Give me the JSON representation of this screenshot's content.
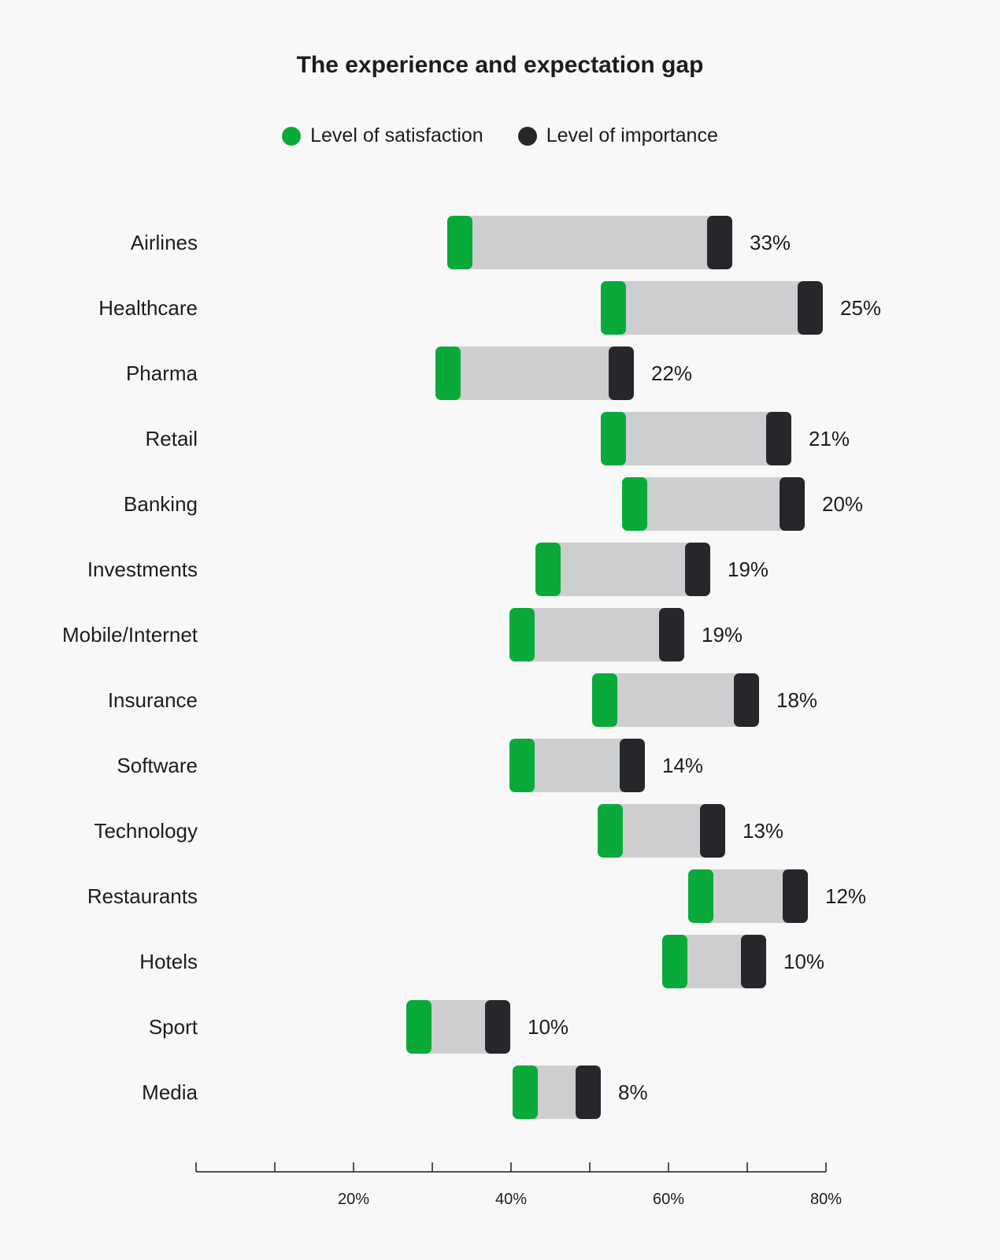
{
  "chart_data": {
    "type": "bar",
    "title": "The experience and expectation gap",
    "xlim": [
      0,
      80
    ],
    "x_ticks": [
      0,
      10,
      20,
      30,
      40,
      50,
      60,
      70,
      80
    ],
    "x_tick_labels": [
      {
        "value": 20,
        "label": "20%"
      },
      {
        "value": 40,
        "label": "40%"
      },
      {
        "value": 60,
        "label": "60%"
      },
      {
        "value": 80,
        "label": "80%"
      }
    ],
    "legend_placement": "top-center",
    "series": [
      {
        "name": "Level of satisfaction",
        "color": "#0aaa3a"
      },
      {
        "name": "Level of importance",
        "color": "#25272a"
      }
    ],
    "range_color": "#cdcecf",
    "categories": [
      {
        "label": "Airlines",
        "satisfaction": 33.5,
        "importance": 66.5,
        "gap_label": "33%"
      },
      {
        "label": "Healthcare",
        "satisfaction": 53,
        "importance": 78,
        "gap_label": "25%"
      },
      {
        "label": "Pharma",
        "satisfaction": 32,
        "importance": 54,
        "gap_label": "22%"
      },
      {
        "label": "Retail",
        "satisfaction": 53,
        "importance": 74,
        "gap_label": "21%"
      },
      {
        "label": "Banking",
        "satisfaction": 55.7,
        "importance": 75.7,
        "gap_label": "20%"
      },
      {
        "label": "Investments",
        "satisfaction": 44.7,
        "importance": 63.7,
        "gap_label": "19%"
      },
      {
        "label": "Mobile/Internet",
        "satisfaction": 41.4,
        "importance": 60.4,
        "gap_label": "19%"
      },
      {
        "label": "Insurance",
        "satisfaction": 51.9,
        "importance": 69.9,
        "gap_label": "18%"
      },
      {
        "label": "Software",
        "satisfaction": 41.4,
        "importance": 55.4,
        "gap_label": "14%"
      },
      {
        "label": "Technology",
        "satisfaction": 52.6,
        "importance": 65.6,
        "gap_label": "13%"
      },
      {
        "label": "Restaurants",
        "satisfaction": 64.1,
        "importance": 76.1,
        "gap_label": "12%"
      },
      {
        "label": "Hotels",
        "satisfaction": 60.8,
        "importance": 70.8,
        "gap_label": "10%"
      },
      {
        "label": "Sport",
        "satisfaction": 28.3,
        "importance": 38.3,
        "gap_label": "10%"
      },
      {
        "label": "Media",
        "satisfaction": 41.8,
        "importance": 49.8,
        "gap_label": "8%"
      }
    ]
  }
}
